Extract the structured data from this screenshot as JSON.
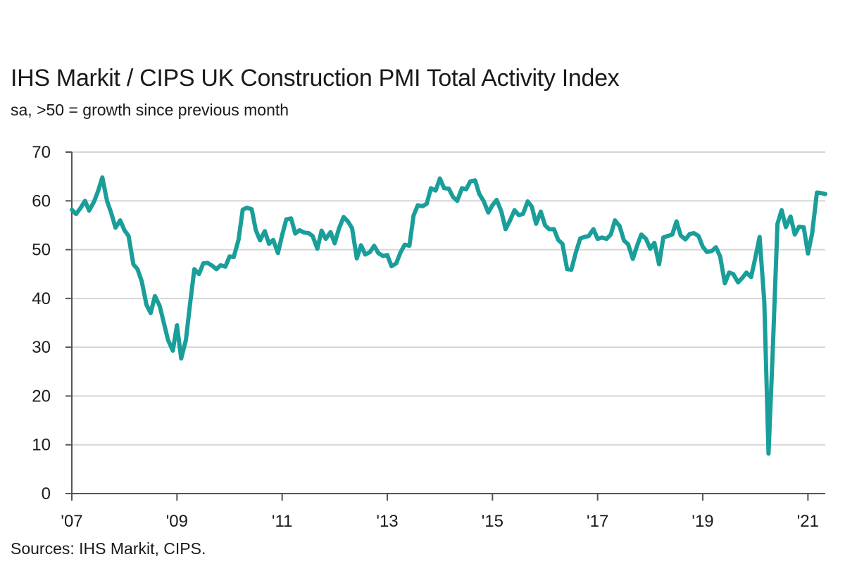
{
  "title": "IHS Markit / CIPS UK Construction PMI Total Activity Index",
  "subtitle": "sa, >50 = growth since previous month",
  "source": "Sources: IHS Markit, CIPS.",
  "chart_data": {
    "type": "line",
    "title": "IHS Markit / CIPS UK Construction PMI Total Activity Index",
    "subtitle": "sa, >50 = growth since previous month",
    "xlabel": "",
    "ylabel": "",
    "ylim": [
      0,
      70
    ],
    "yticks": [
      0,
      10,
      20,
      30,
      40,
      50,
      60,
      70
    ],
    "xlim": [
      2007.0,
      2021.33
    ],
    "xticks": [
      {
        "value": 2007,
        "label": "'07"
      },
      {
        "value": 2009,
        "label": "'09"
      },
      {
        "value": 2011,
        "label": "'11"
      },
      {
        "value": 2013,
        "label": "'13"
      },
      {
        "value": 2015,
        "label": "'15"
      },
      {
        "value": 2017,
        "label": "'17"
      },
      {
        "value": 2019,
        "label": "'19"
      },
      {
        "value": 2021,
        "label": "'21"
      }
    ],
    "grid": "horizontal",
    "legend": "none",
    "color": "#1a9e9a",
    "series": [
      {
        "name": "",
        "points": [
          [
            2007.0,
            58.2
          ],
          [
            2007.08,
            57.3
          ],
          [
            2007.17,
            58.6
          ],
          [
            2007.25,
            60.0
          ],
          [
            2007.33,
            58.0
          ],
          [
            2007.42,
            59.8
          ],
          [
            2007.5,
            62.0
          ],
          [
            2007.58,
            64.8
          ],
          [
            2007.67,
            60.0
          ],
          [
            2007.75,
            57.5
          ],
          [
            2007.83,
            54.5
          ],
          [
            2007.92,
            56.0
          ],
          [
            2008.0,
            54.0
          ],
          [
            2008.08,
            52.8
          ],
          [
            2008.17,
            47.0
          ],
          [
            2008.25,
            46.0
          ],
          [
            2008.33,
            43.5
          ],
          [
            2008.42,
            38.7
          ],
          [
            2008.5,
            37.0
          ],
          [
            2008.58,
            40.5
          ],
          [
            2008.67,
            38.5
          ],
          [
            2008.75,
            35.0
          ],
          [
            2008.83,
            31.5
          ],
          [
            2008.92,
            29.3
          ],
          [
            2009.0,
            34.5
          ],
          [
            2009.08,
            27.7
          ],
          [
            2009.17,
            31.5
          ],
          [
            2009.25,
            39.0
          ],
          [
            2009.33,
            46.0
          ],
          [
            2009.42,
            45.0
          ],
          [
            2009.5,
            47.2
          ],
          [
            2009.58,
            47.3
          ],
          [
            2009.67,
            46.7
          ],
          [
            2009.75,
            46.0
          ],
          [
            2009.83,
            46.8
          ],
          [
            2009.92,
            46.5
          ],
          [
            2010.0,
            48.6
          ],
          [
            2010.08,
            48.5
          ],
          [
            2010.17,
            52.0
          ],
          [
            2010.25,
            58.2
          ],
          [
            2010.33,
            58.6
          ],
          [
            2010.42,
            58.3
          ],
          [
            2010.5,
            54.0
          ],
          [
            2010.58,
            51.9
          ],
          [
            2010.67,
            53.8
          ],
          [
            2010.75,
            51.2
          ],
          [
            2010.83,
            52.0
          ],
          [
            2010.92,
            49.3
          ],
          [
            2011.0,
            53.0
          ],
          [
            2011.08,
            56.2
          ],
          [
            2011.17,
            56.4
          ],
          [
            2011.25,
            53.3
          ],
          [
            2011.33,
            54.0
          ],
          [
            2011.42,
            53.5
          ],
          [
            2011.5,
            53.4
          ],
          [
            2011.58,
            52.8
          ],
          [
            2011.67,
            50.2
          ],
          [
            2011.75,
            53.9
          ],
          [
            2011.83,
            52.2
          ],
          [
            2011.92,
            53.6
          ],
          [
            2012.0,
            51.3
          ],
          [
            2012.08,
            54.3
          ],
          [
            2012.17,
            56.7
          ],
          [
            2012.25,
            55.8
          ],
          [
            2012.33,
            54.4
          ],
          [
            2012.42,
            48.2
          ],
          [
            2012.5,
            50.9
          ],
          [
            2012.58,
            49.0
          ],
          [
            2012.67,
            49.5
          ],
          [
            2012.75,
            50.8
          ],
          [
            2012.83,
            49.3
          ],
          [
            2012.92,
            48.7
          ],
          [
            2013.0,
            48.9
          ],
          [
            2013.08,
            46.6
          ],
          [
            2013.17,
            47.2
          ],
          [
            2013.25,
            49.4
          ],
          [
            2013.33,
            51.0
          ],
          [
            2013.42,
            50.8
          ],
          [
            2013.5,
            57.0
          ],
          [
            2013.58,
            59.1
          ],
          [
            2013.67,
            58.9
          ],
          [
            2013.75,
            59.4
          ],
          [
            2013.83,
            62.6
          ],
          [
            2013.92,
            62.1
          ],
          [
            2014.0,
            64.6
          ],
          [
            2014.08,
            62.6
          ],
          [
            2014.17,
            62.5
          ],
          [
            2014.25,
            60.8
          ],
          [
            2014.33,
            60.0
          ],
          [
            2014.42,
            62.6
          ],
          [
            2014.5,
            62.4
          ],
          [
            2014.58,
            64.0
          ],
          [
            2014.67,
            64.2
          ],
          [
            2014.75,
            61.4
          ],
          [
            2014.83,
            60.0
          ],
          [
            2014.92,
            57.6
          ],
          [
            2015.0,
            59.1
          ],
          [
            2015.08,
            60.2
          ],
          [
            2015.17,
            57.8
          ],
          [
            2015.25,
            54.2
          ],
          [
            2015.33,
            55.9
          ],
          [
            2015.42,
            58.1
          ],
          [
            2015.5,
            57.1
          ],
          [
            2015.58,
            57.3
          ],
          [
            2015.67,
            59.9
          ],
          [
            2015.75,
            58.8
          ],
          [
            2015.83,
            55.3
          ],
          [
            2015.92,
            57.8
          ],
          [
            2016.0,
            55.0
          ],
          [
            2016.08,
            54.2
          ],
          [
            2016.17,
            54.2
          ],
          [
            2016.25,
            52.0
          ],
          [
            2016.33,
            51.2
          ],
          [
            2016.42,
            46.0
          ],
          [
            2016.5,
            45.9
          ],
          [
            2016.58,
            49.2
          ],
          [
            2016.67,
            52.3
          ],
          [
            2016.75,
            52.6
          ],
          [
            2016.83,
            52.8
          ],
          [
            2016.92,
            54.2
          ],
          [
            2017.0,
            52.2
          ],
          [
            2017.08,
            52.5
          ],
          [
            2017.17,
            52.2
          ],
          [
            2017.25,
            53.1
          ],
          [
            2017.33,
            56.0
          ],
          [
            2017.42,
            54.8
          ],
          [
            2017.5,
            51.9
          ],
          [
            2017.58,
            51.1
          ],
          [
            2017.67,
            48.1
          ],
          [
            2017.75,
            50.8
          ],
          [
            2017.83,
            53.1
          ],
          [
            2017.92,
            52.2
          ],
          [
            2018.0,
            50.2
          ],
          [
            2018.08,
            51.4
          ],
          [
            2018.17,
            47.0
          ],
          [
            2018.25,
            52.5
          ],
          [
            2018.33,
            52.8
          ],
          [
            2018.42,
            53.1
          ],
          [
            2018.5,
            55.8
          ],
          [
            2018.58,
            52.9
          ],
          [
            2018.67,
            52.1
          ],
          [
            2018.75,
            53.2
          ],
          [
            2018.83,
            53.4
          ],
          [
            2018.92,
            52.8
          ],
          [
            2019.0,
            50.6
          ],
          [
            2019.08,
            49.5
          ],
          [
            2019.17,
            49.7
          ],
          [
            2019.25,
            50.5
          ],
          [
            2019.33,
            48.6
          ],
          [
            2019.42,
            43.1
          ],
          [
            2019.5,
            45.3
          ],
          [
            2019.58,
            45.0
          ],
          [
            2019.67,
            43.3
          ],
          [
            2019.75,
            44.2
          ],
          [
            2019.83,
            45.3
          ],
          [
            2019.92,
            44.4
          ],
          [
            2020.0,
            48.4
          ],
          [
            2020.08,
            52.6
          ],
          [
            2020.17,
            39.3
          ],
          [
            2020.25,
            8.2
          ],
          [
            2020.33,
            28.9
          ],
          [
            2020.42,
            55.3
          ],
          [
            2020.5,
            58.1
          ],
          [
            2020.58,
            54.6
          ],
          [
            2020.67,
            56.8
          ],
          [
            2020.75,
            53.1
          ],
          [
            2020.83,
            54.7
          ],
          [
            2020.92,
            54.6
          ],
          [
            2021.0,
            49.2
          ],
          [
            2021.08,
            53.3
          ],
          [
            2021.17,
            61.7
          ],
          [
            2021.25,
            61.6
          ],
          [
            2021.33,
            61.4
          ]
        ]
      }
    ]
  }
}
